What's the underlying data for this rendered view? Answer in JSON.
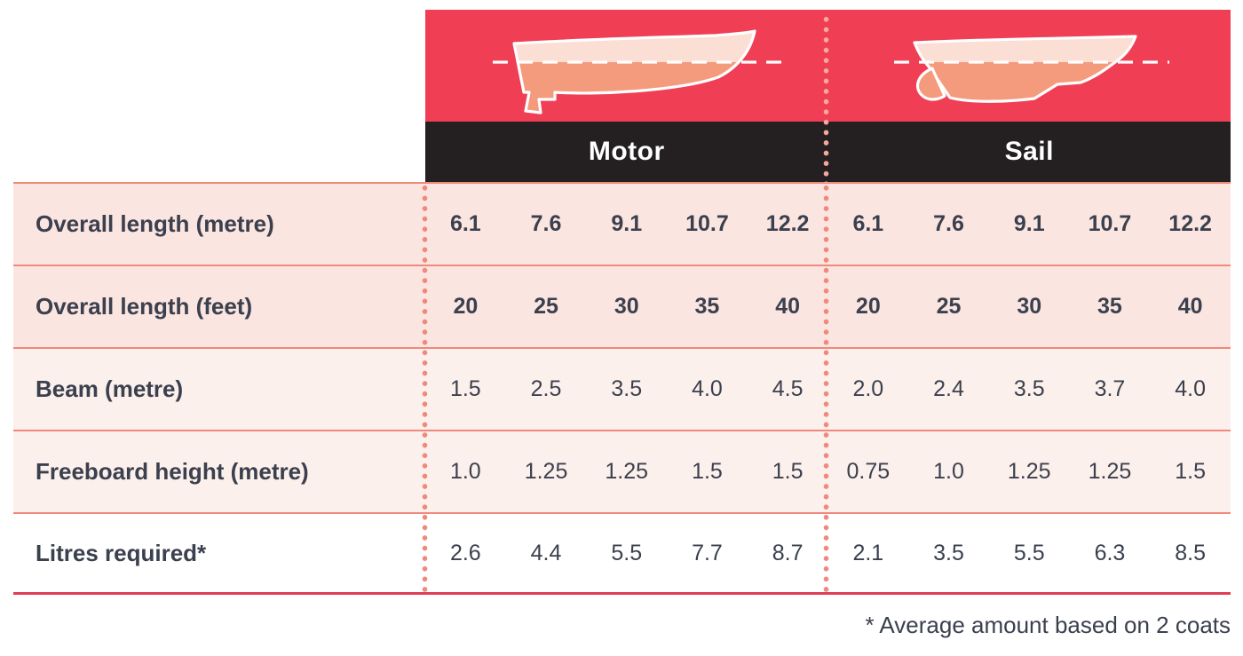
{
  "header": {
    "motor_label": "Motor",
    "sail_label": "Sail",
    "motor_icon": "motor-boat-icon",
    "sail_icon": "sail-boat-icon"
  },
  "footnote": "* Average amount based on 2 coats",
  "chart_data": {
    "type": "table",
    "groups": [
      "Motor",
      "Sail"
    ],
    "group_columns_metre": [
      "6.1",
      "7.6",
      "9.1",
      "10.7",
      "12.2"
    ],
    "rows": [
      {
        "label": "Overall length (metre)",
        "bold_values": true,
        "Motor": [
          "6.1",
          "7.6",
          "9.1",
          "10.7",
          "12.2"
        ],
        "Sail": [
          "6.1",
          "7.6",
          "9.1",
          "10.7",
          "12.2"
        ]
      },
      {
        "label": "Overall length (feet)",
        "bold_values": true,
        "Motor": [
          "20",
          "25",
          "30",
          "35",
          "40"
        ],
        "Sail": [
          "20",
          "25",
          "30",
          "35",
          "40"
        ]
      },
      {
        "label": "Beam (metre)",
        "bold_values": false,
        "Motor": [
          "1.5",
          "2.5",
          "3.5",
          "4.0",
          "4.5"
        ],
        "Sail": [
          "2.0",
          "2.4",
          "3.5",
          "3.7",
          "4.0"
        ]
      },
      {
        "label": "Freeboard height (metre)",
        "bold_values": false,
        "Motor": [
          "1.0",
          "1.25",
          "1.25",
          "1.5",
          "1.5"
        ],
        "Sail": [
          "0.75",
          "1.0",
          "1.25",
          "1.25",
          "1.5"
        ]
      },
      {
        "label": "Litres required*",
        "bold_values": false,
        "Motor": [
          "2.6",
          "4.4",
          "5.5",
          "7.7",
          "8.7"
        ],
        "Sail": [
          "2.1",
          "3.5",
          "5.5",
          "6.3",
          "8.5"
        ]
      }
    ],
    "footnote": "* Average amount based on 2 coats",
    "legend_position": "none",
    "grid": "dotted vertical separators between label/Motor/Sail sections"
  },
  "colors": {
    "red": "#F03E55",
    "black": "#241F21",
    "text": "#3B404E",
    "row_a": "#FBE5E0",
    "row_b": "#FCF0EC",
    "line": "#F0887B",
    "line_strong": "#E33C56",
    "dot": "#F0897C",
    "dot_header": "#F6A99B",
    "boat_light": "#FBDED4",
    "boat_deep": "#F49B7E"
  }
}
